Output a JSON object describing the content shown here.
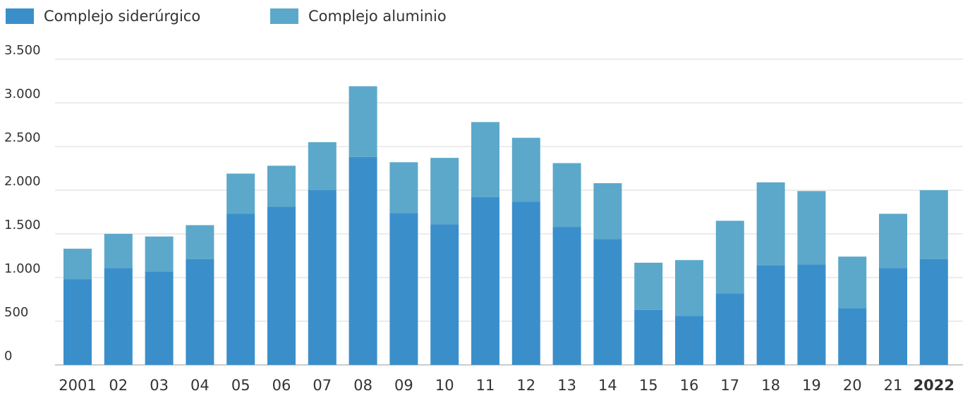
{
  "chart_data": {
    "type": "stacked_bar",
    "categories": [
      "2001",
      "02",
      "03",
      "04",
      "05",
      "06",
      "07",
      "08",
      "09",
      "10",
      "11",
      "12",
      "13",
      "14",
      "15",
      "16",
      "17",
      "18",
      "19",
      "20",
      "21",
      "2022"
    ],
    "series": [
      {
        "name": "Complejo siderúrgico",
        "color": "#3a8fcb",
        "values": [
          980,
          1110,
          1070,
          1210,
          1730,
          1810,
          2000,
          2380,
          1740,
          1610,
          1920,
          1870,
          1580,
          1440,
          630,
          560,
          820,
          1140,
          1150,
          650,
          1110,
          1210
        ]
      },
      {
        "name": "Complejo aluminio",
        "color": "#5ca8ca",
        "values": [
          350,
          390,
          400,
          390,
          460,
          470,
          550,
          810,
          580,
          760,
          860,
          730,
          730,
          640,
          540,
          640,
          830,
          950,
          840,
          590,
          620,
          790
        ]
      }
    ],
    "ylim": [
      0,
      3500
    ],
    "yticks": [
      0,
      500,
      {
        "value": 1000,
        "label": "1.000"
      },
      {
        "value": 1500,
        "label": "1.500"
      },
      {
        "value": 2000,
        "label": "2.000"
      },
      {
        "value": 2500,
        "label": "2.500"
      },
      {
        "value": 3000,
        "label": "3.000"
      },
      {
        "value": 3500,
        "label": "3.500"
      }
    ],
    "grid": true
  }
}
